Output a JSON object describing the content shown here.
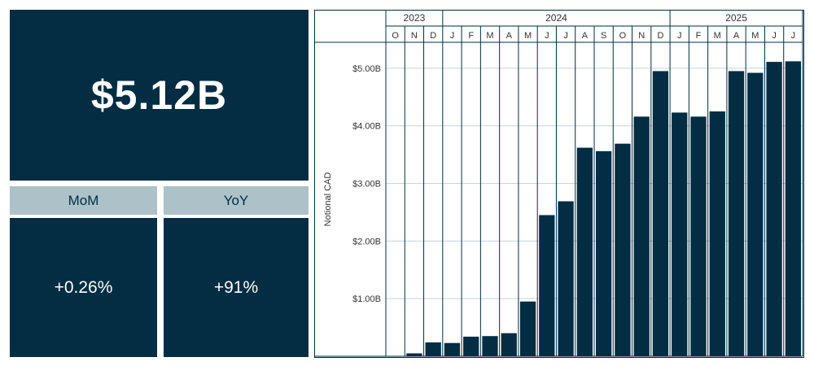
{
  "kpi": {
    "total_value": "$5.12B",
    "mom": {
      "label": "MoM",
      "value": "+0.26%"
    },
    "yoy": {
      "label": "YoY",
      "value": "+91%"
    }
  },
  "colors": {
    "primary": "#022d42",
    "header": "#adc1c9",
    "grid": "#c9d3d8"
  },
  "chart_data": {
    "type": "bar",
    "title": "",
    "xlabel": "",
    "ylabel": "Notional CAD",
    "ylim": [
      0,
      5.45
    ],
    "yticks": [
      {
        "value": 1,
        "label": "$1.00B"
      },
      {
        "value": 2,
        "label": "$2.00B"
      },
      {
        "value": 3,
        "label": "$3.00B"
      },
      {
        "value": 4,
        "label": "$4.00B"
      },
      {
        "value": 5,
        "label": "$5.00B"
      }
    ],
    "years": [
      {
        "label": "2023",
        "span": 3
      },
      {
        "label": "2024",
        "span": 12
      },
      {
        "label": "2025",
        "span": 7
      }
    ],
    "categories": [
      "O",
      "N",
      "D",
      "J",
      "F",
      "M",
      "A",
      "M",
      "J",
      "J",
      "A",
      "S",
      "O",
      "N",
      "D",
      "J",
      "F",
      "M",
      "A",
      "M",
      "J",
      "J"
    ],
    "values": [
      0,
      0.05,
      0.24,
      0.23,
      0.34,
      0.35,
      0.4,
      0.95,
      2.45,
      2.69,
      3.62,
      3.56,
      3.69,
      4.16,
      4.95,
      4.23,
      4.16,
      4.25,
      4.95,
      4.92,
      5.11,
      5.12
    ],
    "grid": true
  }
}
